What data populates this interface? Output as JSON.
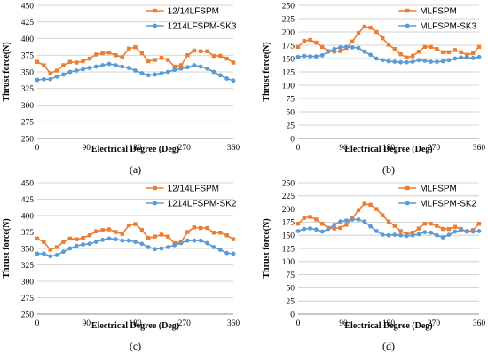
{
  "chart_data": [
    {
      "type": "line",
      "caption": "(a)",
      "xlabel": "Electrical Degree (Deg)",
      "ylabel": "Thrust force(N)",
      "xlim": [
        0,
        360
      ],
      "ylim": [
        250,
        450
      ],
      "yticks": [
        250,
        275,
        300,
        325,
        350,
        375,
        400,
        425,
        450
      ],
      "xticks": [
        0,
        90,
        180,
        270,
        360
      ],
      "x": [
        0,
        12,
        24,
        36,
        48,
        60,
        72,
        84,
        96,
        108,
        120,
        132,
        144,
        156,
        168,
        180,
        192,
        204,
        216,
        228,
        240,
        252,
        264,
        276,
        288,
        300,
        312,
        324,
        336,
        348,
        360
      ],
      "legend_position": "top-right",
      "grid": true,
      "series": [
        {
          "name": "12/14LFSPM",
          "color": "#ed7d31",
          "marker": "square",
          "values": [
            365,
            360,
            348,
            352,
            360,
            365,
            364,
            366,
            370,
            376,
            378,
            379,
            375,
            372,
            385,
            387,
            378,
            366,
            368,
            371,
            368,
            358,
            360,
            375,
            382,
            381,
            381,
            374,
            374,
            370,
            364
          ]
        },
        {
          "name": "1214LFSPM-SK3",
          "color": "#5b9bd5",
          "marker": "circle",
          "values": [
            338,
            339,
            339,
            343,
            346,
            350,
            352,
            354,
            356,
            358,
            360,
            362,
            360,
            358,
            356,
            352,
            348,
            345,
            346,
            348,
            350,
            353,
            355,
            357,
            360,
            358,
            355,
            350,
            345,
            340,
            337
          ]
        }
      ]
    },
    {
      "type": "line",
      "caption": "(b)",
      "xlabel": "Electrical Degree (Deg)",
      "ylabel": "Thrust force(N)",
      "xlim": [
        0,
        360
      ],
      "ylim": [
        0,
        250
      ],
      "yticks": [
        0,
        25,
        50,
        75,
        100,
        125,
        150,
        175,
        200,
        225,
        250
      ],
      "xticks": [
        0,
        90,
        180,
        270,
        360
      ],
      "x": [
        0,
        12,
        24,
        36,
        48,
        60,
        72,
        84,
        96,
        108,
        120,
        132,
        144,
        156,
        168,
        180,
        192,
        204,
        216,
        228,
        240,
        252,
        264,
        276,
        288,
        300,
        312,
        324,
        336,
        348,
        360
      ],
      "legend_position": "top-right",
      "grid": true,
      "series": [
        {
          "name": "MLFSPM",
          "color": "#ed7d31",
          "marker": "square",
          "values": [
            172,
            183,
            185,
            180,
            172,
            164,
            163,
            164,
            170,
            182,
            198,
            210,
            208,
            200,
            188,
            176,
            168,
            158,
            152,
            155,
            163,
            172,
            172,
            168,
            162,
            162,
            166,
            162,
            157,
            160,
            172
          ]
        },
        {
          "name": "MLFSPM-SK3",
          "color": "#5b9bd5",
          "marker": "circle",
          "values": [
            153,
            155,
            154,
            154,
            156,
            163,
            168,
            171,
            172,
            171,
            170,
            163,
            157,
            150,
            147,
            145,
            144,
            143,
            143,
            144,
            147,
            146,
            144,
            144,
            145,
            147,
            150,
            152,
            152,
            151,
            153
          ]
        }
      ]
    },
    {
      "type": "line",
      "caption": "(c)",
      "xlabel": "Electrical Degree (Deg)",
      "ylabel": "Thrust force(N)",
      "xlim": [
        0,
        360
      ],
      "ylim": [
        250,
        450
      ],
      "yticks": [
        250,
        275,
        300,
        325,
        350,
        375,
        400,
        425,
        450
      ],
      "xticks": [
        0,
        90,
        180,
        270,
        360
      ],
      "x": [
        0,
        12,
        24,
        36,
        48,
        60,
        72,
        84,
        96,
        108,
        120,
        132,
        144,
        156,
        168,
        180,
        192,
        204,
        216,
        228,
        240,
        252,
        264,
        276,
        288,
        300,
        312,
        324,
        336,
        348,
        360
      ],
      "legend_position": "top-right",
      "grid": true,
      "series": [
        {
          "name": "12/14LFSPM",
          "color": "#ed7d31",
          "marker": "square",
          "values": [
            365,
            360,
            348,
            352,
            360,
            365,
            364,
            366,
            370,
            376,
            378,
            379,
            375,
            372,
            385,
            387,
            378,
            366,
            368,
            371,
            368,
            358,
            360,
            375,
            382,
            381,
            381,
            374,
            374,
            370,
            364
          ]
        },
        {
          "name": "1214LFSPM-SK2",
          "color": "#5b9bd5",
          "marker": "circle",
          "values": [
            342,
            342,
            338,
            340,
            345,
            350,
            354,
            356,
            357,
            360,
            363,
            365,
            364,
            362,
            362,
            360,
            357,
            352,
            349,
            350,
            352,
            355,
            358,
            362,
            362,
            362,
            358,
            352,
            348,
            343,
            342
          ]
        }
      ]
    },
    {
      "type": "line",
      "caption": "(d)",
      "xlabel": "Electrical Degree (Deg)",
      "ylabel": "Thrust force(N)",
      "xlim": [
        0,
        360
      ],
      "ylim": [
        0,
        250
      ],
      "yticks": [
        0,
        25,
        50,
        75,
        100,
        125,
        150,
        175,
        200,
        225,
        250
      ],
      "xticks": [
        0,
        90,
        180,
        270,
        360
      ],
      "x": [
        0,
        12,
        24,
        36,
        48,
        60,
        72,
        84,
        96,
        108,
        120,
        132,
        144,
        156,
        168,
        180,
        192,
        204,
        216,
        228,
        240,
        252,
        264,
        276,
        288,
        300,
        312,
        324,
        336,
        348,
        360
      ],
      "legend_position": "top-right",
      "grid": true,
      "series": [
        {
          "name": "MLFSPM",
          "color": "#ed7d31",
          "marker": "square",
          "values": [
            172,
            183,
            185,
            180,
            172,
            164,
            163,
            164,
            170,
            182,
            198,
            210,
            208,
            200,
            188,
            176,
            168,
            158,
            152,
            155,
            163,
            172,
            172,
            168,
            162,
            162,
            166,
            162,
            157,
            160,
            172
          ]
        },
        {
          "name": "MLFSPM-SK2",
          "color": "#5b9bd5",
          "marker": "circle",
          "values": [
            158,
            162,
            163,
            161,
            157,
            162,
            170,
            176,
            178,
            180,
            180,
            176,
            167,
            158,
            151,
            150,
            151,
            150,
            149,
            150,
            152,
            156,
            155,
            150,
            146,
            151,
            157,
            160,
            158,
            157,
            158
          ]
        }
      ]
    }
  ]
}
